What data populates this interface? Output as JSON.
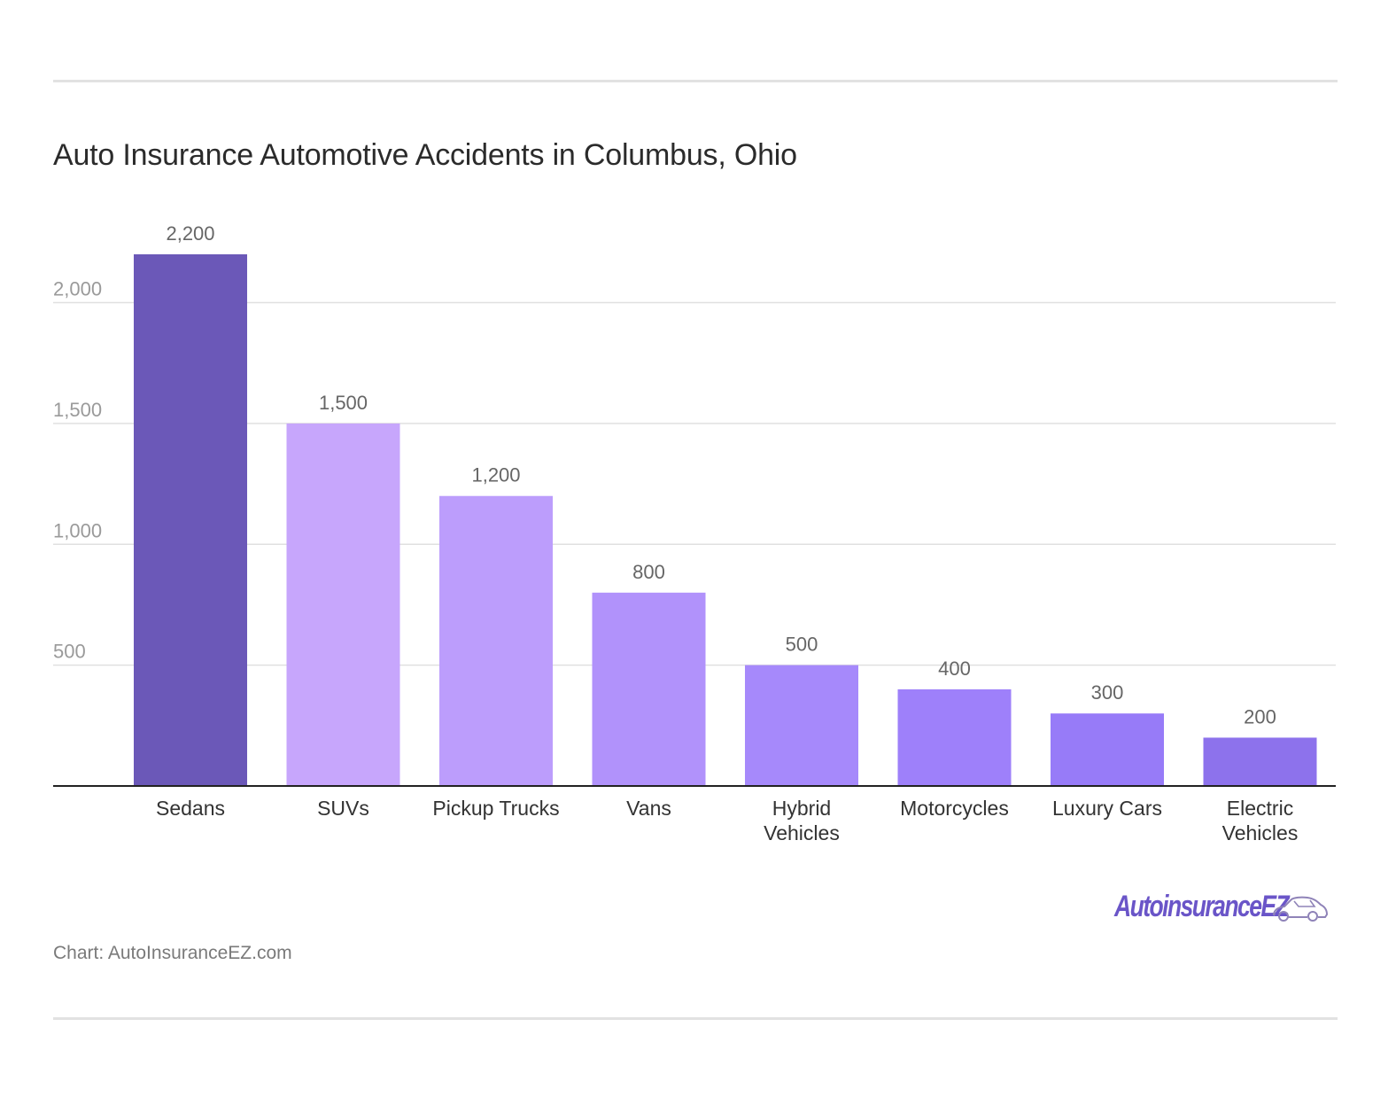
{
  "header": {
    "title": "Auto Insurance Automotive Accidents in Columbus, Ohio"
  },
  "footer": {
    "source": "Chart: AutoInsuranceEZ.com",
    "logo_text": "AutoinsuranceEZ",
    "logo_icon": "car-icon"
  },
  "chart_data": {
    "type": "bar",
    "title": "Auto Insurance Automotive Accidents in Columbus, Ohio",
    "xlabel": "",
    "ylabel": "",
    "categories": [
      "Sedans",
      "SUVs",
      "Pickup Trucks",
      "Vans",
      "Hybrid Vehicles",
      "Motorcycles",
      "Luxury Cars",
      "Electric Vehicles"
    ],
    "values": [
      2200,
      1500,
      1200,
      800,
      500,
      400,
      300,
      200
    ],
    "value_labels": [
      "2,200",
      "1,500",
      "1,200",
      "800",
      "500",
      "400",
      "300",
      "200"
    ],
    "yticks": [
      500,
      1000,
      1500,
      2000
    ],
    "ytick_labels": [
      "500",
      "1,000",
      "1,500",
      "2,000"
    ],
    "ylim": [
      0,
      2200
    ],
    "grid": true,
    "legend": "none",
    "bar_colors": [
      "#6b58b8",
      "#c7a6fc",
      "#bc9dfc",
      "#b192fb",
      "#a689fb",
      "#9e80fa",
      "#977bf8",
      "#8d72ec"
    ]
  }
}
